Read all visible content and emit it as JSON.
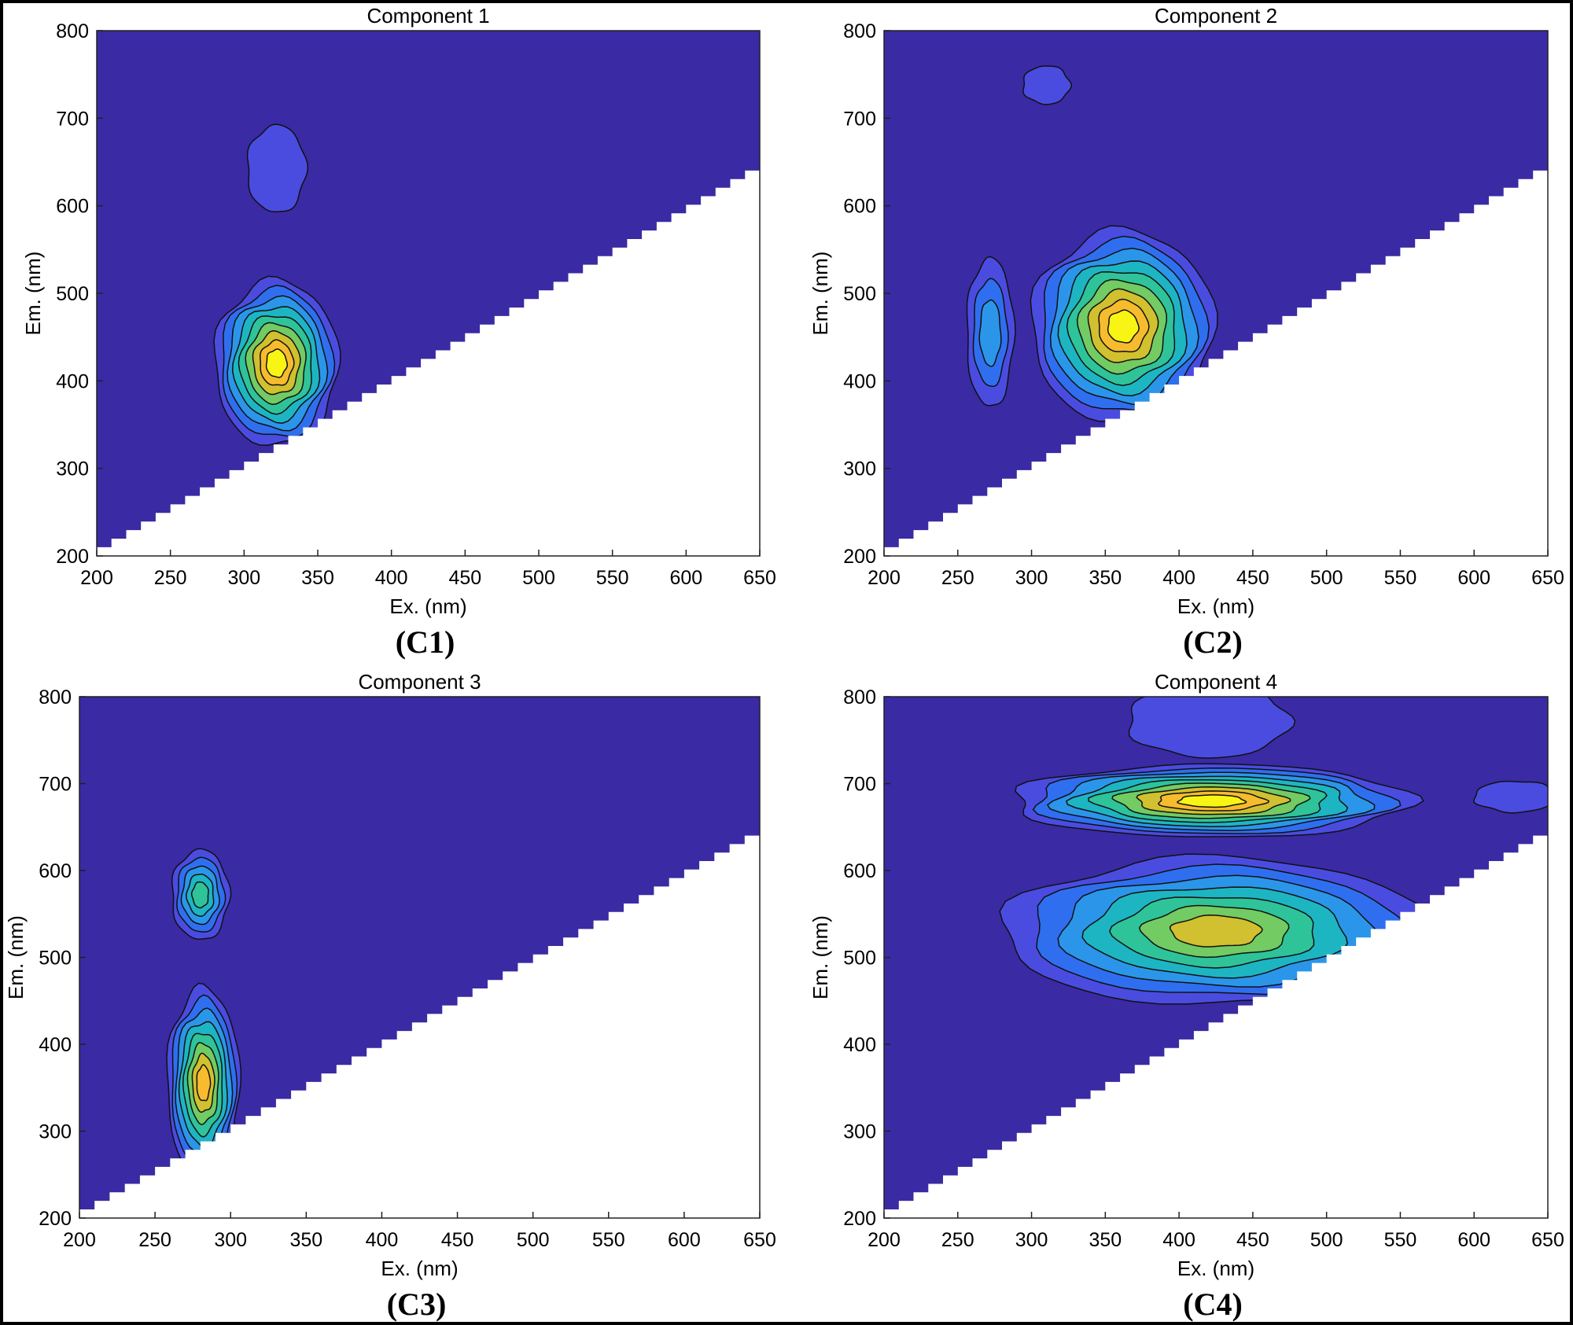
{
  "colors": {
    "background": "#3A2AA4",
    "level1": "#4A4CE0",
    "level2": "#2F6FEF",
    "level3": "#2B96E9",
    "level4": "#1EB5C3",
    "level5": "#2FC39A",
    "level6": "#72CB63",
    "level7": "#D1C02F",
    "level8": "#F7BC2D",
    "level9": "#F8F414",
    "contour_line": "#111111",
    "axis": "#222222"
  },
  "chart_data": [
    {
      "type": "contour",
      "id": "c1",
      "title": "Component 1",
      "panel_label": "(C1)",
      "xlabel": "Ex. (nm)",
      "ylabel": "Em. (nm)",
      "xlim": [
        200,
        650
      ],
      "ylim": [
        200,
        800
      ],
      "xticks": [
        200,
        250,
        300,
        350,
        400,
        450,
        500,
        550,
        600,
        650
      ],
      "yticks": [
        200,
        300,
        400,
        500,
        600,
        700,
        800
      ],
      "mask_line": [
        [
          200,
          210
        ],
        [
          650,
          650
        ]
      ],
      "peaks": [
        {
          "ex": 322,
          "em": 420,
          "rx": 42,
          "ry": 95,
          "levels": 9
        },
        {
          "ex": 322,
          "em": 642,
          "rx": 20,
          "ry": 50,
          "levels": 1
        }
      ]
    },
    {
      "type": "contour",
      "id": "c2",
      "title": "Component 2",
      "panel_label": "(C2)",
      "xlabel": "Ex. (nm)",
      "ylabel": "Em. (nm)",
      "xlim": [
        200,
        650
      ],
      "ylim": [
        200,
        800
      ],
      "xticks": [
        200,
        250,
        300,
        350,
        400,
        450,
        500,
        550,
        600,
        650
      ],
      "yticks": [
        200,
        300,
        400,
        500,
        600,
        700,
        800
      ],
      "mask_line": [
        [
          200,
          210
        ],
        [
          650,
          650
        ]
      ],
      "peaks": [
        {
          "ex": 362,
          "em": 462,
          "rx": 62,
          "ry": 110,
          "levels": 9
        },
        {
          "ex": 272,
          "em": 455,
          "rx": 16,
          "ry": 85,
          "levels": 3
        },
        {
          "ex": 310,
          "em": 738,
          "rx": 16,
          "ry": 22,
          "levels": 1
        }
      ]
    },
    {
      "type": "contour",
      "id": "c3",
      "title": "Component 3",
      "panel_label": "(C3)",
      "xlabel": "Ex. (nm)",
      "ylabel": "Em. (nm)",
      "xlim": [
        200,
        650
      ],
      "ylim": [
        200,
        800
      ],
      "xticks": [
        200,
        250,
        300,
        350,
        400,
        450,
        500,
        550,
        600,
        650
      ],
      "yticks": [
        200,
        300,
        400,
        500,
        600,
        700,
        800
      ],
      "mask_line": [
        [
          200,
          210
        ],
        [
          650,
          650
        ]
      ],
      "peaks": [
        {
          "ex": 282,
          "em": 355,
          "rx": 24,
          "ry": 110,
          "levels": 8
        },
        {
          "ex": 280,
          "em": 572,
          "rx": 19,
          "ry": 52,
          "levels": 5
        }
      ]
    },
    {
      "type": "contour",
      "id": "c4",
      "title": "Component 4",
      "panel_label": "(C4)",
      "xlabel": "Ex. (nm)",
      "ylabel": "Em. (nm)",
      "xlim": [
        200,
        650
      ],
      "ylim": [
        200,
        800
      ],
      "xticks": [
        200,
        250,
        300,
        350,
        400,
        450,
        500,
        550,
        600,
        650
      ],
      "yticks": [
        200,
        300,
        400,
        500,
        600,
        700,
        800
      ],
      "mask_line": [
        [
          200,
          210
        ],
        [
          650,
          650
        ]
      ],
      "peaks": [
        {
          "ex": 425,
          "em": 530,
          "rx": 145,
          "ry": 85,
          "levels": 7
        },
        {
          "ex": 422,
          "em": 680,
          "rx": 135,
          "ry": 42,
          "levels": 9
        },
        {
          "ex": 420,
          "em": 772,
          "rx": 55,
          "ry": 42,
          "levels": 1
        },
        {
          "ex": 628,
          "em": 685,
          "rx": 28,
          "ry": 18,
          "levels": 1
        }
      ]
    }
  ]
}
